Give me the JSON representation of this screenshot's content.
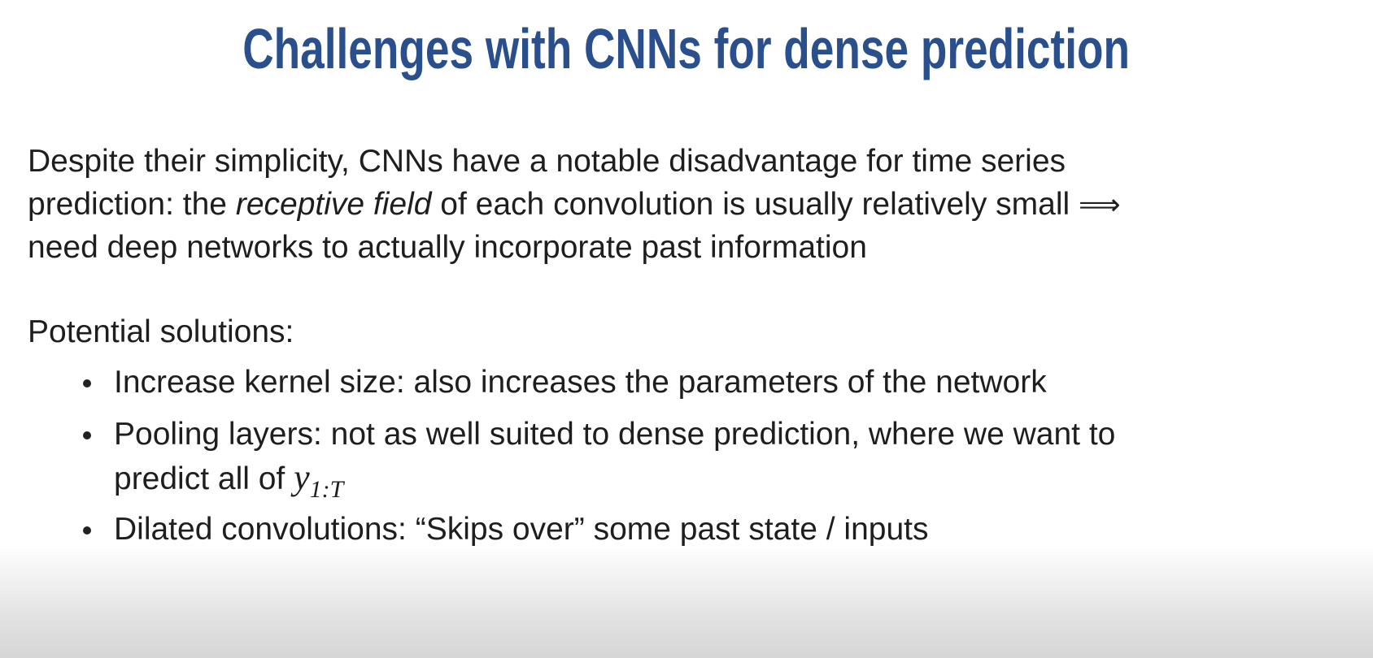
{
  "title": "Challenges with CNNs for dense prediction",
  "paragraph": [
    [
      {
        "text": "Despite their simplicity, CNNs have a notable disadvantage for time series"
      }
    ],
    [
      {
        "text": "prediction: the "
      },
      {
        "text": "receptive field",
        "style": "italic"
      },
      {
        "text": " of each convolution is usually relatively small "
      },
      {
        "text": "⟹",
        "style": "symbol"
      }
    ],
    [
      {
        "text": "need deep networks to actually incorporate past information"
      }
    ]
  ],
  "solutions": {
    "heading": "Potential solutions:",
    "items": [
      [
        [
          {
            "text": "Increase kernel size: also increases the parameters of the network"
          }
        ]
      ],
      [
        [
          {
            "text": "Pooling layers: not as well suited to dense prediction, where we want to"
          }
        ],
        [
          {
            "text": "predict all of "
          },
          {
            "text": "y",
            "sub": "1:T",
            "style": "math"
          }
        ]
      ],
      [
        [
          {
            "text": "Dilated convolutions: “Skips over” some past state / inputs"
          }
        ]
      ]
    ]
  }
}
